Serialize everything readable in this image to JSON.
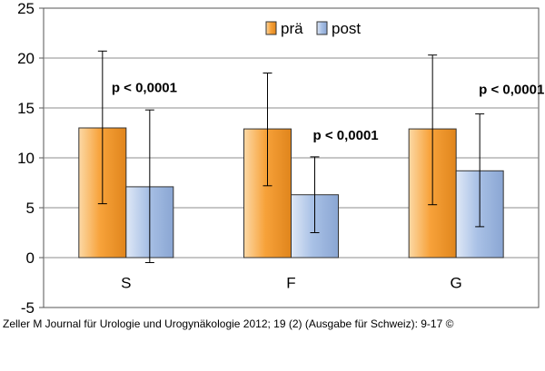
{
  "chart_data": {
    "type": "bar",
    "categories": [
      "S",
      "F",
      "G"
    ],
    "series": [
      {
        "name": "prä",
        "values": [
          13.0,
          12.9,
          12.9
        ],
        "error_upper": [
          20.7,
          18.5,
          20.3
        ],
        "error_lower": [
          5.4,
          7.2,
          5.3
        ],
        "color": "#f7a23a"
      },
      {
        "name": "post",
        "values": [
          7.1,
          6.3,
          8.7
        ],
        "error_upper": [
          14.8,
          10.1,
          14.4
        ],
        "error_lower": [
          -0.5,
          2.5,
          3.1
        ],
        "color": "#a9c1e6"
      }
    ],
    "annotations": [
      {
        "category": "S",
        "text": "p < 0,0001"
      },
      {
        "category": "F",
        "text": "p < 0,0001"
      },
      {
        "category": "G",
        "text": "p < 0,0001"
      }
    ],
    "title": "",
    "xlabel": "",
    "ylabel": "",
    "ylim": [
      -5,
      25
    ],
    "yticks": [
      -5,
      0,
      5,
      10,
      15,
      20,
      25
    ],
    "grid": true,
    "legend_position": "top-center"
  },
  "citation": "Zeller M Journal für Urologie und Urogynäkologie 2012; 19 (2) (Ausgabe für Schweiz): 9-17 ©"
}
